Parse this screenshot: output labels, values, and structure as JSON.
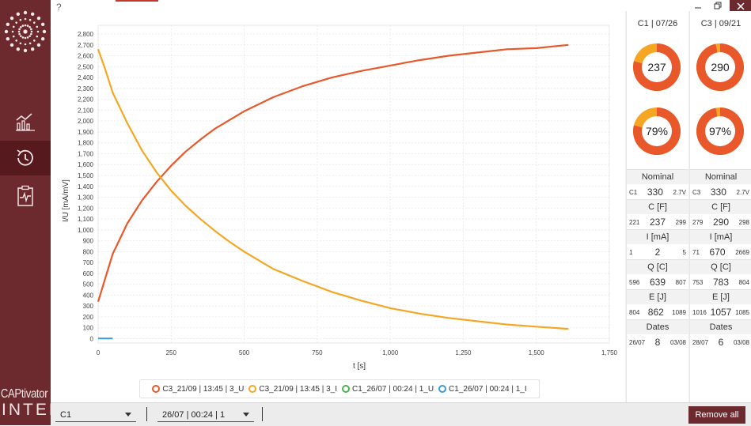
{
  "sidebar": {
    "brand_line1": "CAPtivator",
    "brand_line2": "INTEL",
    "nav": [
      {
        "icon": "line-chart-icon"
      },
      {
        "icon": "history-clock-icon"
      },
      {
        "icon": "clipboard-monitor-icon"
      }
    ]
  },
  "header": {
    "help": "?"
  },
  "legend": [
    {
      "label": "C3_21/09 | 13:45 | 3_U",
      "color": "#e8582a"
    },
    {
      "label": "C3_21/09 | 13:45 | 3_I",
      "color": "#f5a623"
    },
    {
      "label": "C1_26/07 | 00:24 | 1_U",
      "color": "#4caf50"
    },
    {
      "label": "C1_26/07 | 00:24 | 1_I",
      "color": "#3a9ad9"
    }
  ],
  "chart_data": {
    "type": "line",
    "xlabel": "t [s]",
    "ylabel": "I/U [mA/mV]",
    "xlim": [
      0,
      1750
    ],
    "ylim": [
      -40,
      2880
    ],
    "xticks": [
      "0",
      "250",
      "500",
      "750",
      "1,000",
      "1,250",
      "1,500",
      "1,750"
    ],
    "yticks": [
      "0",
      "100",
      "200",
      "300",
      "400",
      "500",
      "600",
      "700",
      "800",
      "900",
      "1,000",
      "1,100",
      "1,200",
      "1,300",
      "1,400",
      "1,500",
      "1,600",
      "1,700",
      "1,800",
      "1,900",
      "2,000",
      "2,100",
      "2,200",
      "2,300",
      "2,400",
      "2,500",
      "2,600",
      "2,700",
      "2,800"
    ],
    "grid": true,
    "series": [
      {
        "name": "C3_21/09 | 13:45 | 3_U",
        "color": "#e8582a",
        "x": [
          0,
          50,
          100,
          150,
          200,
          250,
          300,
          350,
          400,
          450,
          500,
          600,
          700,
          800,
          900,
          1000,
          1100,
          1200,
          1300,
          1400,
          1500,
          1610
        ],
        "y": [
          340,
          780,
          1060,
          1270,
          1440,
          1590,
          1720,
          1830,
          1930,
          2010,
          2090,
          2220,
          2320,
          2400,
          2460,
          2510,
          2560,
          2600,
          2630,
          2660,
          2670,
          2700
        ]
      },
      {
        "name": "C3_21/09 | 13:45 | 3_I",
        "color": "#f5a623",
        "x": [
          0,
          25,
          50,
          100,
          150,
          200,
          250,
          300,
          350,
          400,
          450,
          500,
          600,
          700,
          800,
          900,
          1000,
          1100,
          1200,
          1300,
          1400,
          1500,
          1610
        ],
        "y": [
          2660,
          2470,
          2260,
          1980,
          1730,
          1530,
          1360,
          1220,
          1100,
          990,
          890,
          800,
          640,
          530,
          430,
          350,
          280,
          230,
          190,
          160,
          130,
          110,
          90
        ]
      },
      {
        "name": "C1_26/07 | 00:24 | 1_U",
        "color": "#4caf50",
        "x": [],
        "y": []
      },
      {
        "name": "C1_26/07 | 00:24 | 1_I",
        "color": "#3a9ad9",
        "x": [
          0,
          50
        ],
        "y": [
          2,
          2
        ]
      }
    ]
  },
  "panels": [
    {
      "title": "C1 | 07/26",
      "donut_value": "237",
      "donut_value_fraction": 0.79,
      "donut_pct": "79%",
      "donut_pct_fraction": 0.79,
      "nominal_label": "Nominal",
      "nominal_id": "C1",
      "nominal_value": "330",
      "nominal_voltage": "2.7V",
      "c_label": "C [F]",
      "c_min": "221",
      "c_val": "237",
      "c_max": "299",
      "i_label": "I [mA]",
      "i_min": "1",
      "i_val": "2",
      "i_max": "5",
      "q_label": "Q [C]",
      "q_min": "596",
      "q_val": "639",
      "q_max": "807",
      "e_label": "E [J]",
      "e_min": "804",
      "e_val": "862",
      "e_max": "1089",
      "dates_label": "Dates",
      "d_first": "26/07",
      "d_count": "8",
      "d_last": "03/08"
    },
    {
      "title": "C3 | 09/21",
      "donut_value": "290",
      "donut_value_fraction": 0.97,
      "donut_pct": "97%",
      "donut_pct_fraction": 0.97,
      "nominal_label": "Nominal",
      "nominal_id": "C3",
      "nominal_value": "330",
      "nominal_voltage": "2.7V",
      "c_label": "C [F]",
      "c_min": "279",
      "c_val": "290",
      "c_max": "298",
      "i_label": "I [mA]",
      "i_min": "71",
      "i_val": "670",
      "i_max": "2669",
      "q_label": "Q [C]",
      "q_min": "753",
      "q_val": "783",
      "q_max": "804",
      "e_label": "E [J]",
      "e_min": "1016",
      "e_val": "1057",
      "e_max": "1085",
      "dates_label": "Dates",
      "d_first": "28/07",
      "d_count": "6",
      "d_last": "03/08"
    }
  ],
  "bottom": {
    "capacitor_select": "C1",
    "measurement_select": "26/07 | 00:24 | 1",
    "remove_all": "Remove all"
  },
  "colors": {
    "accent": "#6d2a2e",
    "donut_main": "#e8582a",
    "donut_rest": "#f5a623"
  }
}
